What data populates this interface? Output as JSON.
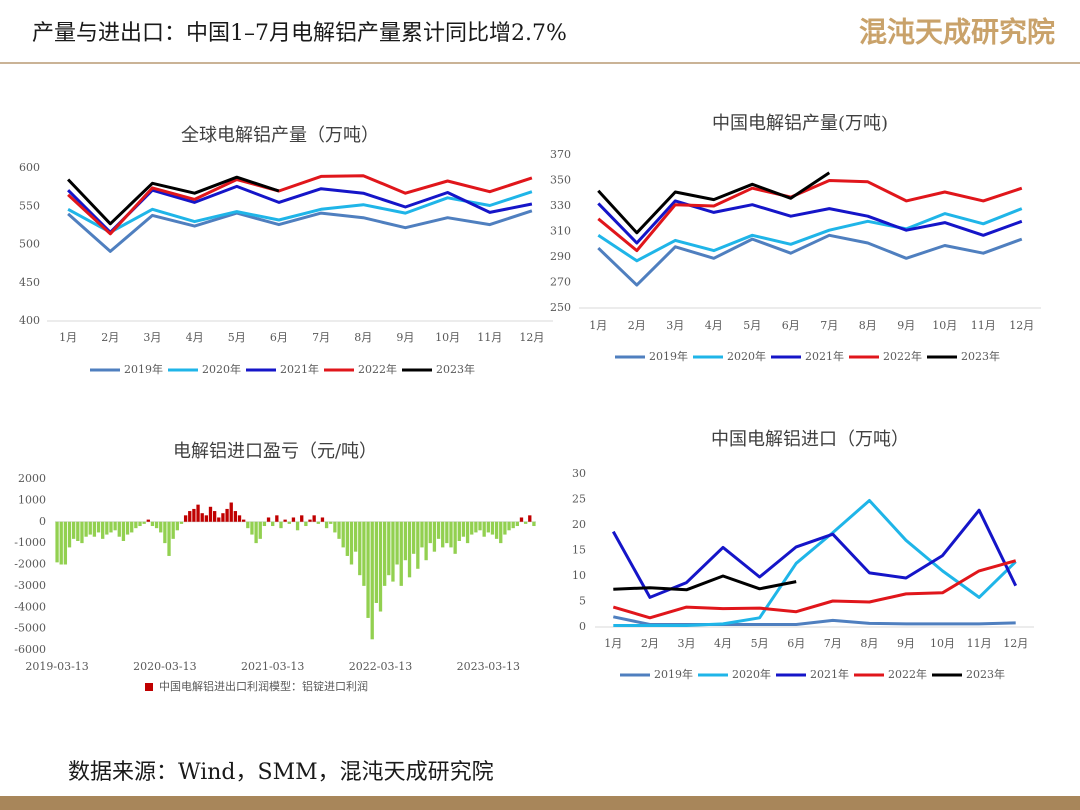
{
  "header": {
    "title": "产量与进出口：中国1–7月电解铝产量累计同比增2.7%",
    "logo": "混沌天成研究院"
  },
  "source": "数据来源：Wind，SMM，混沌天成研究院",
  "chart_data": [
    {
      "type": "line",
      "title": "全球电解铝产量（万吨）",
      "categories": [
        "1月",
        "2月",
        "3月",
        "4月",
        "5月",
        "6月",
        "7月",
        "8月",
        "9月",
        "10月",
        "11月",
        "12月"
      ],
      "ylim": [
        400,
        600
      ],
      "yticks": [
        400,
        450,
        500,
        550,
        600
      ],
      "series": [
        {
          "name": "2019年",
          "color": "#4f7fbf",
          "values": [
            540,
            491,
            538,
            524,
            541,
            526,
            541,
            535,
            522,
            535,
            526,
            544
          ]
        },
        {
          "name": "2020年",
          "color": "#1fb5e8",
          "values": [
            546,
            516,
            546,
            530,
            543,
            532,
            546,
            552,
            541,
            561,
            551,
            569
          ]
        },
        {
          "name": "2021年",
          "color": "#1515c8",
          "values": [
            571,
            516,
            571,
            555,
            576,
            555,
            573,
            567,
            549,
            568,
            542,
            553
          ]
        },
        {
          "name": "2022年",
          "color": "#e0161b",
          "values": [
            565,
            514,
            574,
            559,
            585,
            570,
            589,
            590,
            567,
            583,
            569,
            587
          ]
        },
        {
          "name": "2023年",
          "color": "#000000",
          "values": [
            585,
            527,
            580,
            567,
            588,
            570,
            null,
            null,
            null,
            null,
            null,
            null
          ]
        }
      ]
    },
    {
      "type": "line",
      "title": "中国电解铝产量(万吨)",
      "categories": [
        "1月",
        "2月",
        "3月",
        "4月",
        "5月",
        "6月",
        "7月",
        "8月",
        "9月",
        "10月",
        "11月",
        "12月"
      ],
      "ylim": [
        250,
        370
      ],
      "yticks": [
        250,
        270,
        290,
        310,
        330,
        350,
        370
      ],
      "series": [
        {
          "name": "2019年",
          "color": "#4f7fbf",
          "values": [
            297,
            268,
            298,
            289,
            304,
            293,
            307,
            301,
            289,
            299,
            293,
            304
          ]
        },
        {
          "name": "2020年",
          "color": "#1fb5e8",
          "values": [
            307,
            287,
            303,
            295,
            307,
            300,
            311,
            318,
            312,
            324,
            316,
            328
          ]
        },
        {
          "name": "2021年",
          "color": "#1515c8",
          "values": [
            332,
            301,
            334,
            325,
            331,
            322,
            328,
            322,
            311,
            317,
            307,
            318
          ]
        },
        {
          "name": "2022年",
          "color": "#e0161b",
          "values": [
            320,
            295,
            331,
            330,
            344,
            337,
            350,
            349,
            334,
            341,
            334,
            344
          ]
        },
        {
          "name": "2023年",
          "color": "#000000",
          "values": [
            342,
            309,
            341,
            335,
            347,
            336,
            356,
            null,
            null,
            null,
            null,
            null
          ]
        }
      ]
    },
    {
      "type": "bar",
      "title": "电解铝进口盈亏（元/吨）",
      "categories": [
        "2019-03-13",
        null,
        null,
        null,
        null,
        null,
        null,
        null,
        null,
        null,
        null,
        null,
        null,
        null,
        null,
        null,
        null,
        null,
        null,
        null,
        null,
        null,
        null,
        null,
        null,
        null,
        "2020-03-13",
        null,
        null,
        null,
        null,
        null,
        null,
        null,
        null,
        null,
        null,
        null,
        null,
        null,
        null,
        null,
        null,
        null,
        null,
        null,
        null,
        null,
        null,
        null,
        null,
        null,
        "2021-03-13",
        null,
        null,
        null,
        null,
        null,
        null,
        null,
        null,
        null,
        null,
        null,
        null,
        null,
        null,
        null,
        null,
        null,
        null,
        null,
        null,
        null,
        null,
        null,
        null,
        null,
        "2022-03-13",
        null,
        null,
        null,
        null,
        null,
        null,
        null,
        null,
        null,
        null,
        null,
        null,
        null,
        null,
        null,
        null,
        null,
        null,
        null,
        null,
        null,
        null,
        null,
        null,
        null,
        "2023-03-13",
        null,
        null,
        null,
        null,
        null,
        null,
        null,
        null,
        null,
        null,
        null
      ],
      "ylim": [
        -6000,
        2000
      ],
      "yticks": [
        -6000,
        -5000,
        -4000,
        -3000,
        -2000,
        -1000,
        0,
        1000,
        2000
      ],
      "series": [
        {
          "name": "中国电解铝进出口利润模型：铝锭进口利润",
          "color": "#c00000",
          "negative_color": "#92d050",
          "values": [
            -1900,
            -2000,
            -2000,
            -1200,
            -800,
            -900,
            -1000,
            -700,
            -600,
            -700,
            -500,
            -800,
            -600,
            -500,
            -400,
            -700,
            -900,
            -600,
            -500,
            -300,
            -200,
            -100,
            100,
            -200,
            -300,
            -500,
            -1000,
            -1600,
            -800,
            -400,
            -100,
            300,
            500,
            600,
            800,
            400,
            300,
            700,
            500,
            200,
            400,
            600,
            900,
            500,
            300,
            100,
            -300,
            -600,
            -1000,
            -800,
            -200,
            200,
            -200,
            300,
            -300,
            100,
            -100,
            200,
            -400,
            300,
            -200,
            100,
            300,
            -100,
            200,
            -300,
            -100,
            -500,
            -800,
            -1200,
            -1600,
            -2000,
            -1400,
            -2500,
            -3000,
            -4500,
            -5500,
            -3800,
            -4200,
            -3000,
            -2500,
            -2800,
            -2000,
            -3000,
            -1800,
            -2600,
            -1500,
            -2200,
            -1200,
            -1800,
            -1000,
            -1400,
            -800,
            -1200,
            -1000,
            -1200,
            -1500,
            -900,
            -700,
            -1000,
            -600,
            -500,
            -400,
            -700,
            -500,
            -600,
            -800,
            -1000,
            -600,
            -400,
            -300,
            -200,
            200,
            -100,
            300,
            -200
          ]
        }
      ]
    },
    {
      "type": "line",
      "title": "中国电解铝进口（万吨）",
      "categories": [
        "1月",
        "2月",
        "3月",
        "4月",
        "5月",
        "6月",
        "7月",
        "8月",
        "9月",
        "10月",
        "11月",
        "12月"
      ],
      "ylim": [
        0,
        30
      ],
      "yticks": [
        0,
        5,
        10,
        15,
        20,
        25,
        30
      ],
      "series": [
        {
          "name": "2019年",
          "color": "#4f7fbf",
          "values": [
            2,
            0.5,
            0.5,
            0.5,
            0.5,
            0.5,
            1.3,
            0.7,
            0.6,
            0.6,
            0.6,
            0.8
          ]
        },
        {
          "name": "2020年",
          "color": "#1fb5e8",
          "values": [
            0.3,
            0.3,
            0.3,
            0.6,
            1.8,
            12.5,
            18.5,
            24.8,
            17,
            11,
            5.8,
            12.8
          ]
        },
        {
          "name": "2021年",
          "color": "#1515c8",
          "values": [
            18.7,
            5.8,
            8.7,
            15.6,
            9.8,
            15.7,
            18.2,
            10.6,
            9.6,
            14,
            22.9,
            8.1
          ]
        },
        {
          "name": "2022年",
          "color": "#e0161b",
          "values": [
            3.9,
            1.8,
            3.9,
            3.6,
            3.7,
            3,
            5.1,
            4.9,
            6.5,
            6.7,
            11,
            13
          ]
        },
        {
          "name": "2023年",
          "color": "#000000",
          "values": [
            7.4,
            7.7,
            7.3,
            10,
            7.5,
            8.9,
            null,
            null,
            null,
            null,
            null,
            null
          ]
        }
      ]
    }
  ]
}
